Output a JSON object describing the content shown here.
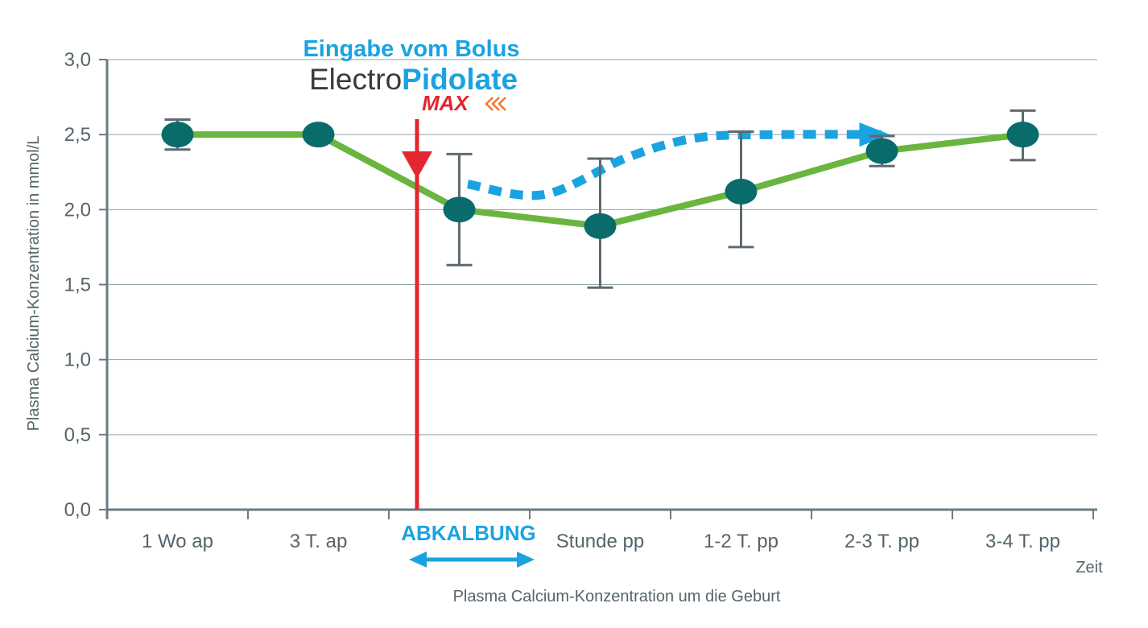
{
  "chart_data": {
    "type": "line",
    "title": "",
    "xlabel": "Plasma Calcium-Konzentration um die Geburt",
    "x_axis_end_label": "Zeit",
    "ylabel": "Plasma Calcium-Konzentration in mmol/L",
    "ylim": [
      0,
      3.0
    ],
    "y_ticks": [
      "0,0",
      "0,5",
      "1,0",
      "1,5",
      "2,0",
      "2,5",
      "3,0"
    ],
    "categories": [
      "1 Wo ap",
      "3 T. ap",
      "ABKALBUNG",
      "Stunde pp",
      "1-2 T. pp",
      "2-3 T. pp",
      "3-4 T. pp"
    ],
    "grid": true,
    "series": [
      {
        "style": "solid",
        "color": "#6ab53f",
        "points": [
          {
            "x": "1 Wo ap",
            "y": 2.5,
            "err_low": 2.4,
            "err_high": 2.6
          },
          {
            "x": "3 T. ap",
            "y": 2.5
          },
          {
            "x": "ABKALBUNG",
            "y": 2.0,
            "err_low": 1.63,
            "err_high": 2.37
          },
          {
            "x": "Stunde pp",
            "y": 1.89,
            "err_low": 1.48,
            "err_high": 2.34
          },
          {
            "x": "1-2 T. pp",
            "y": 2.12,
            "err_low": 1.75,
            "err_high": 2.52
          },
          {
            "x": "2-3 T. pp",
            "y": 2.39,
            "err_low": 2.29,
            "err_high": 2.49
          },
          {
            "x": "3-4 T. pp",
            "y": 2.5,
            "err_low": 2.33,
            "err_high": 2.66
          }
        ]
      },
      {
        "style": "dotted-arrow",
        "color": "#1aa3e0",
        "points": [
          {
            "x": 2.06,
            "y": 2.17
          },
          {
            "x": 2.6,
            "y": 2.1
          },
          {
            "x": 3.2,
            "y": 2.35
          },
          {
            "x": 3.7,
            "y": 2.48
          },
          {
            "x": 4.3,
            "y": 2.5
          },
          {
            "x": 5.0,
            "y": 2.5
          }
        ]
      }
    ],
    "annotations": {
      "bolus_title": "Eingabe vom Bolus",
      "brand_part1": "Electro",
      "brand_part2": "Pidolate",
      "brand_max": "MAX",
      "bolus_x": 1.7,
      "birth_label": "ABKALBUNG"
    },
    "colors": {
      "green_line": "#6ab53f",
      "markers": "#0a6b6b",
      "error_bars": "#5e6a70",
      "red_arrow": "#e3262f",
      "blue": "#1aa3e0",
      "axis": "#6b7b82",
      "grid": "#8fa0a6"
    }
  }
}
